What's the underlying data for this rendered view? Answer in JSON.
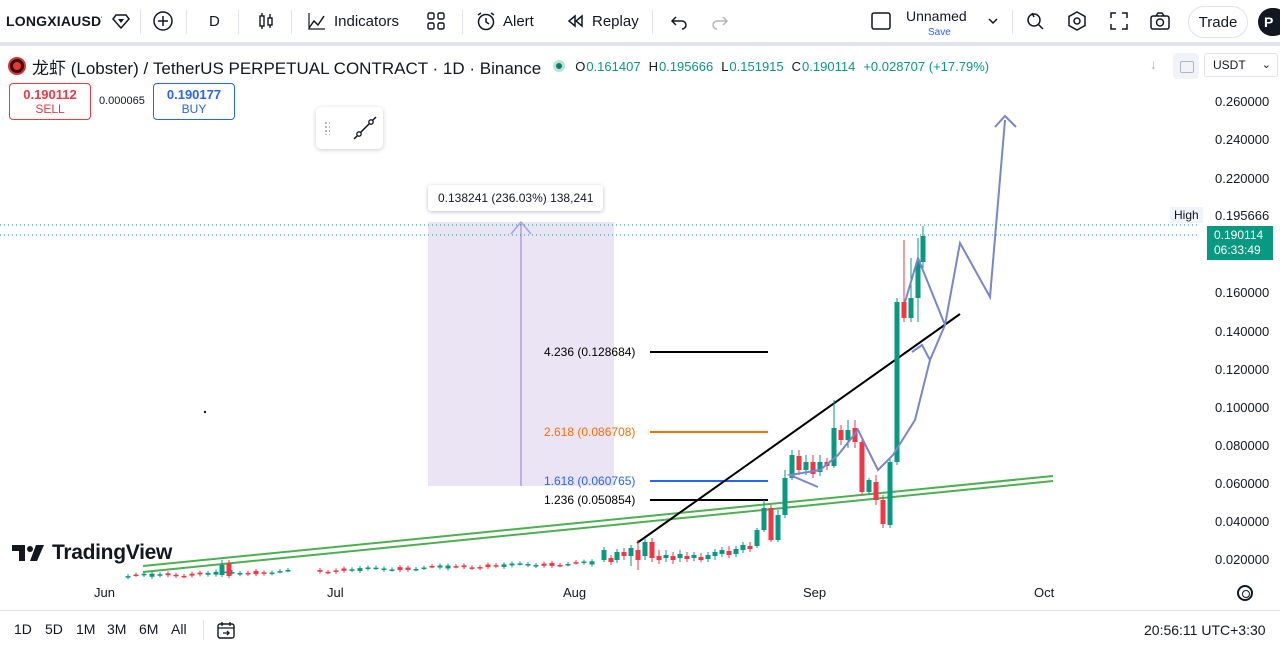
{
  "toolbar": {
    "symbol": "LONGXIAUSDT",
    "interval": "D",
    "indicators_label": "Indicators",
    "alert_label": "Alert",
    "replay_label": "Replay",
    "layout_name": "Unnamed",
    "layout_save": "Save",
    "trade_label": "Trade",
    "avatar_letter": "P"
  },
  "legend": {
    "title": "龙虾 (Lobster) / TetherUS PERPETUAL CONTRACT · 1D · Binance",
    "o_key": "O",
    "o_val": "0.161407",
    "h_key": "H",
    "h_val": "0.195666",
    "l_key": "L",
    "l_val": "0.151915",
    "c_key": "C",
    "c_val": "0.190114",
    "change": "+0.028707 (+17.79%)"
  },
  "order": {
    "sell_price": "0.190112",
    "sell_label": "SELL",
    "spread": "0.000065",
    "buy_price": "0.190177",
    "buy_label": "BUY"
  },
  "currency": "USDT",
  "price_scale": [
    "0.260000",
    "0.240000",
    "0.220000",
    "0.160000",
    "0.140000",
    "0.120000",
    "0.100000",
    "0.080000",
    "0.060000",
    "0.040000",
    "0.020000"
  ],
  "high_marker": {
    "label": "High",
    "value": "0.195666"
  },
  "last_price": {
    "value": "0.190114",
    "countdown": "06:33:49"
  },
  "time_axis": [
    "Jun",
    "Jul",
    "Aug",
    "Sep",
    "Oct"
  ],
  "measure": {
    "text": "0.138241 (236.03%) 138,241"
  },
  "fib_levels": [
    {
      "label": "4.236 (0.128684)",
      "color": "#000000"
    },
    {
      "label": "2.618 (0.086708)",
      "color": "#ff6d00"
    },
    {
      "label": "1.618 (0.060765)",
      "color": "#2962ff"
    },
    {
      "label": "1.236 (0.050854)",
      "color": "#000000"
    }
  ],
  "brand": "TradingView",
  "ranges": [
    "1D",
    "5D",
    "1M",
    "3M",
    "6M",
    "All"
  ],
  "clock": "20:56:11 UTC+3:30",
  "colors": {
    "up": "#089981",
    "down": "#f23645",
    "accent": "#2962ff"
  }
}
